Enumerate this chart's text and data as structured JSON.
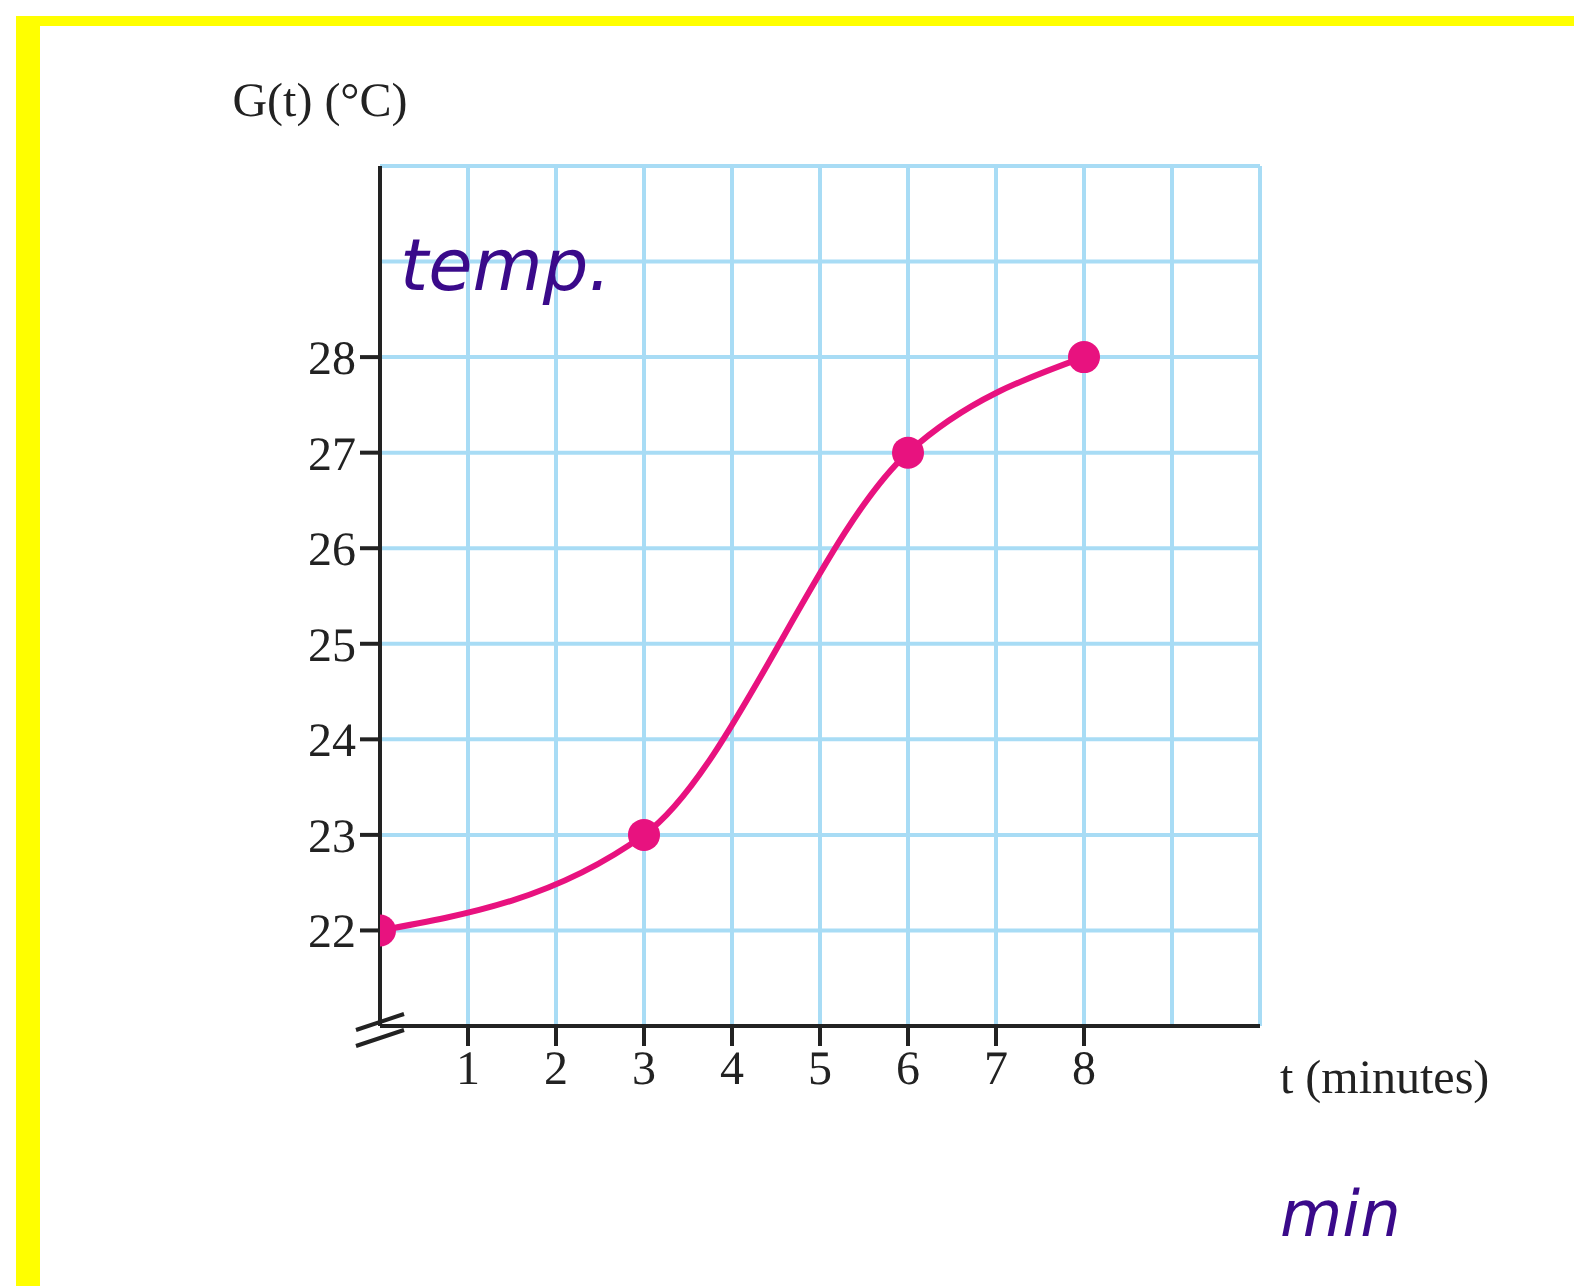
{
  "chart_data": {
    "type": "line",
    "xlabel": "t (minutes)",
    "ylabel": "G(t) (°C)",
    "x": [
      0,
      3,
      6,
      8
    ],
    "series": [
      {
        "color": "#e8127f",
        "values": [
          22,
          23,
          27,
          28
        ]
      }
    ],
    "xlim": [
      0,
      10
    ],
    "ylim": [
      21,
      30
    ],
    "xticks": [
      1,
      2,
      3,
      4,
      5,
      6,
      7,
      8
    ],
    "yticks": [
      22,
      23,
      24,
      25,
      26,
      27,
      28
    ],
    "grid": true,
    "marker": "circle",
    "line_style": "solid",
    "annotations": [
      "temp.",
      "min"
    ]
  }
}
